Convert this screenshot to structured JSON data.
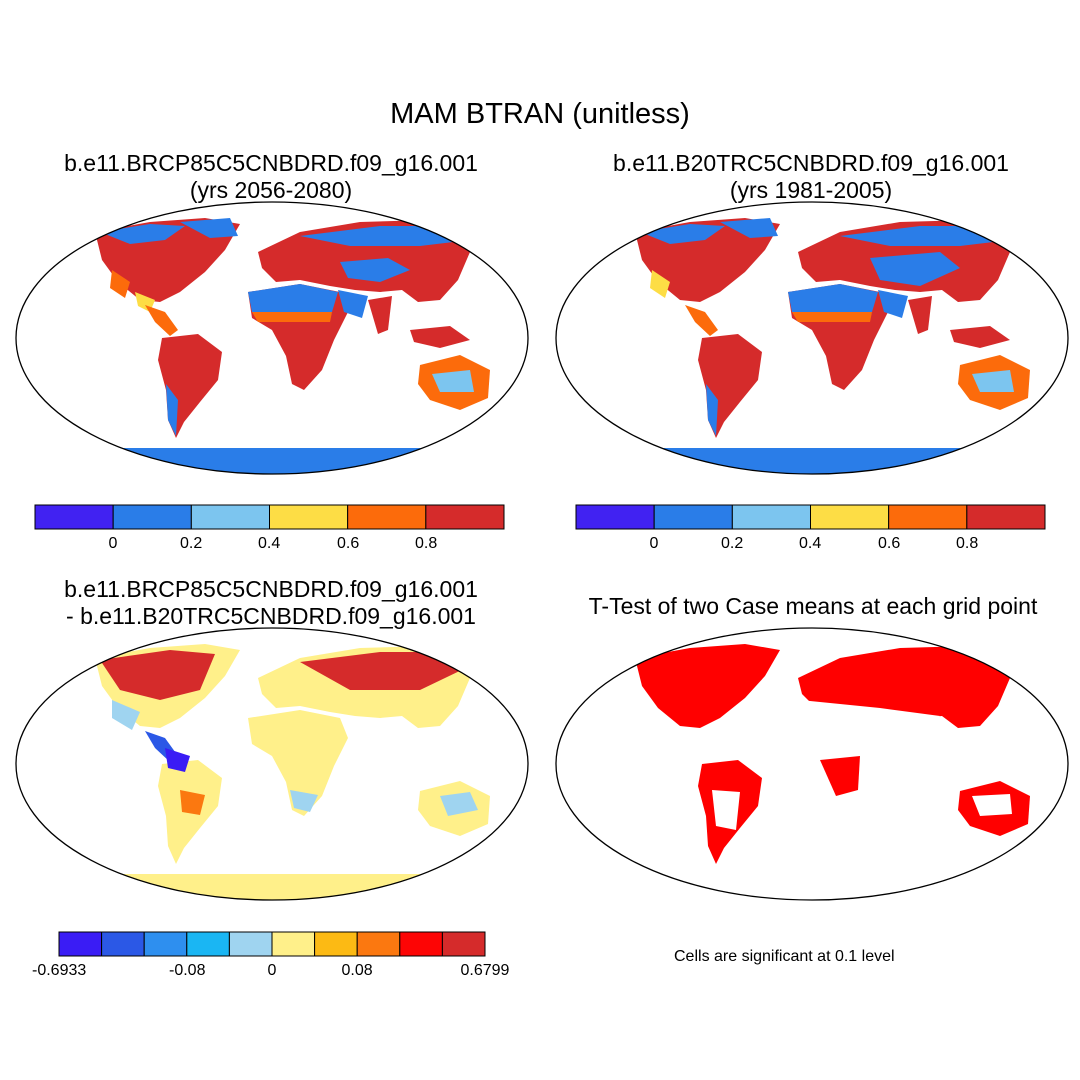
{
  "figure_title": "MAM BTRAN (unitless)",
  "panels": [
    {
      "title_line1": "b.e11.BRCP85C5CNBDRD.f09_g16.001",
      "title_line2": "(yrs 2056-2080)"
    },
    {
      "title_line1": "b.e11.B20TRC5CNBDRD.f09_g16.001",
      "title_line2": "(yrs 1981-2005)"
    },
    {
      "title_line1": "b.e11.BRCP85C5CNBDRD.f09_g16.001",
      "title_line2": "- b.e11.B20TRC5CNBDRD.f09_g16.001"
    },
    {
      "title_line1": "T-Test of two Case means at each grid point",
      "title_line2": ""
    }
  ],
  "colorbar_main": {
    "colors": [
      "#4122f2",
      "#2a7de8",
      "#7cc5ef",
      "#fddd45",
      "#fc6b0b",
      "#d52b2b"
    ],
    "tick_labels": [
      "0",
      "0.2",
      "0.4",
      "0.6",
      "0.8"
    ]
  },
  "colorbar_diff": {
    "colors": [
      "#3a1cf5",
      "#2b58e6",
      "#2e8fef",
      "#1ab6f3",
      "#9fd4f0",
      "#fff08a",
      "#fcba14",
      "#fb7810",
      "#fd0505",
      "#d52b2b"
    ],
    "tick_labels": [
      "-0.6933",
      "-0.08",
      "0",
      "0.08",
      "0.6799"
    ]
  },
  "significance_note": "Cells are significant at 0.1 level"
}
